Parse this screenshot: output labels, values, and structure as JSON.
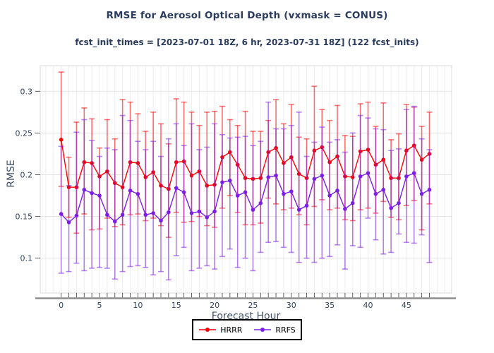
{
  "header": {
    "title": "RMSE for Aerosol Optical Depth (vxmask = CONUS)",
    "subtitle": "fcst_init_times = [2023-07-01 18Z, 6 hr, 2023-07-31 18Z] (122 fcst_inits)"
  },
  "chart_data": {
    "type": "line",
    "title": "RMSE for Aerosol Optical Depth (vxmask = CONUS)",
    "subtitle": "fcst_init_times = [2023-07-01 18Z, 6 hr, 2023-07-31 18Z] (122 fcst_inits)",
    "xlabel": "Forecast Hour",
    "ylabel": "RMSE",
    "grid": true,
    "legend_position": "bottom-center",
    "xlim": [
      -2.73,
      50.9
    ],
    "ylim": [
      0.0583,
      0.3307
    ],
    "xticks": [
      0,
      5,
      10,
      15,
      20,
      25,
      30,
      35,
      40,
      45
    ],
    "yticks": [
      0.1,
      0.15,
      0.2,
      0.25,
      0.3
    ],
    "ytick_labels": [
      "0.1",
      "0.15",
      "0.2",
      "0.25",
      "0.3"
    ],
    "x": [
      0,
      1,
      2,
      3,
      4,
      5,
      6,
      7,
      8,
      9,
      10,
      11,
      12,
      13,
      14,
      15,
      16,
      17,
      18,
      19,
      20,
      21,
      22,
      23,
      24,
      25,
      26,
      27,
      28,
      29,
      30,
      31,
      32,
      33,
      34,
      35,
      36,
      37,
      38,
      39,
      40,
      41,
      42,
      43,
      44,
      45,
      46,
      47,
      48
    ],
    "series": [
      {
        "name": "HRRR",
        "color": "#ff0000",
        "err_color": "rgba(255,0,0,0.55)",
        "values": [
          0.242,
          0.185,
          0.185,
          0.215,
          0.214,
          0.198,
          0.204,
          0.19,
          0.185,
          0.215,
          0.214,
          0.197,
          0.203,
          0.187,
          0.183,
          0.215,
          0.216,
          0.199,
          0.204,
          0.187,
          0.188,
          0.221,
          0.227,
          0.212,
          0.196,
          0.195,
          0.196,
          0.227,
          0.232,
          0.214,
          0.221,
          0.201,
          0.196,
          0.229,
          0.233,
          0.215,
          0.222,
          0.198,
          0.197,
          0.228,
          0.23,
          0.212,
          0.218,
          0.196,
          0.196,
          0.229,
          0.235,
          0.218,
          0.225
        ],
        "err_hi": [
          0.323,
          0.221,
          0.263,
          0.28,
          0.267,
          0.232,
          0.266,
          0.243,
          0.29,
          0.287,
          0.273,
          0.252,
          0.275,
          0.261,
          0.237,
          0.291,
          0.287,
          0.275,
          0.259,
          0.275,
          0.276,
          0.282,
          0.266,
          0.259,
          0.276,
          0.252,
          0.252,
          0.265,
          0.29,
          0.261,
          0.284,
          0.245,
          0.243,
          0.306,
          0.278,
          0.265,
          0.283,
          0.247,
          0.246,
          0.285,
          0.287,
          0.258,
          0.286,
          0.242,
          0.249,
          0.284,
          0.281,
          0.258,
          0.275
        ],
        "err_lo": [
          0.186,
          0.149,
          0.13,
          0.153,
          0.134,
          0.135,
          0.148,
          0.138,
          0.14,
          0.152,
          0.153,
          0.145,
          0.148,
          0.139,
          0.125,
          0.155,
          0.143,
          0.144,
          0.15,
          0.139,
          0.137,
          0.16,
          0.175,
          0.155,
          0.14,
          0.14,
          0.142,
          0.172,
          0.165,
          0.158,
          0.16,
          0.152,
          0.14,
          0.162,
          0.17,
          0.158,
          0.16,
          0.146,
          0.145,
          0.158,
          0.16,
          0.154,
          0.168,
          0.149,
          0.146,
          0.163,
          0.169,
          0.134,
          0.165
        ]
      },
      {
        "name": "RRFS",
        "color": "#7d1ee8",
        "err_color": "rgba(125,30,232,0.55)",
        "values": [
          0.153,
          0.143,
          0.151,
          0.182,
          0.178,
          0.175,
          0.152,
          0.144,
          0.152,
          0.181,
          0.177,
          0.152,
          0.154,
          0.145,
          0.155,
          0.184,
          0.179,
          0.154,
          0.156,
          0.149,
          0.156,
          0.191,
          0.193,
          0.175,
          0.179,
          0.158,
          0.166,
          0.197,
          0.199,
          0.177,
          0.18,
          0.158,
          0.163,
          0.195,
          0.199,
          0.175,
          0.181,
          0.159,
          0.166,
          0.198,
          0.202,
          0.177,
          0.182,
          0.16,
          0.166,
          0.198,
          0.202,
          0.177,
          0.182
        ],
        "err_hi": [
          0.234,
          0.187,
          0.251,
          0.266,
          0.241,
          0.222,
          0.232,
          0.23,
          0.271,
          0.265,
          0.24,
          0.23,
          0.24,
          0.222,
          0.243,
          0.261,
          0.235,
          0.261,
          0.23,
          0.233,
          0.261,
          0.248,
          0.244,
          0.245,
          0.246,
          0.235,
          0.24,
          0.287,
          0.255,
          0.255,
          0.259,
          0.275,
          0.222,
          0.239,
          0.257,
          0.239,
          0.242,
          0.227,
          0.25,
          0.271,
          0.268,
          0.255,
          0.254,
          0.229,
          0.231,
          0.278,
          0.282,
          0.243,
          0.23
        ],
        "err_lo": [
          0.082,
          0.084,
          0.094,
          0.085,
          0.088,
          0.089,
          0.088,
          0.075,
          0.084,
          0.09,
          0.091,
          0.089,
          0.08,
          0.084,
          0.074,
          0.103,
          0.113,
          0.085,
          0.088,
          0.091,
          0.087,
          0.102,
          0.111,
          0.089,
          0.1,
          0.085,
          0.107,
          0.119,
          0.12,
          0.113,
          0.107,
          0.095,
          0.1,
          0.095,
          0.1,
          0.102,
          0.116,
          0.087,
          0.115,
          0.113,
          0.148,
          0.122,
          0.105,
          0.107,
          0.129,
          0.119,
          0.118,
          0.128,
          0.095
        ]
      }
    ]
  },
  "style": {
    "grid_v_color": "#ededed",
    "grid_h_color": "#e3e3e3",
    "frame_color": "#d9d9d9",
    "spine_color": "#8e8e8e",
    "tick_color": "#4a4a4a",
    "tick_label_color": "#31425f"
  }
}
